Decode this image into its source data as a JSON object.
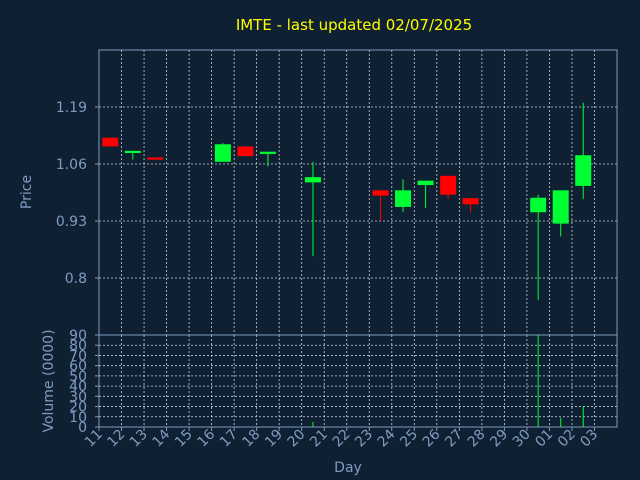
{
  "chart_data": [
    {
      "type": "candlestick",
      "title": "IMTE - last updated 02/07/2025",
      "ylabel": "Price",
      "yticks": [
        0.8,
        0.93,
        1.06,
        1.19
      ],
      "yticklabels": [
        "0.8",
        "0.93",
        "1.06",
        "1.19"
      ],
      "ylim": [
        0.67,
        1.32
      ],
      "x": [
        "11",
        "12",
        "13",
        "14",
        "15",
        "16",
        "17",
        "18",
        "19",
        "20",
        "21",
        "22",
        "23",
        "24",
        "25",
        "26",
        "27",
        "28",
        "29",
        "30",
        "01",
        "02",
        "03"
      ],
      "grid": true,
      "candles": [
        {
          "day": "11",
          "open": 1.12,
          "close": 1.1,
          "high": 1.12,
          "low": 1.1
        },
        {
          "day": "12",
          "open": 1.085,
          "close": 1.09,
          "high": 1.09,
          "low": 1.07
        },
        {
          "day": "13",
          "open": 1.075,
          "close": 1.07,
          "high": 1.075,
          "low": 1.068
        },
        {
          "day": "16",
          "open": 1.065,
          "close": 1.105,
          "high": 1.108,
          "low": 1.065
        },
        {
          "day": "17",
          "open": 1.1,
          "close": 1.078,
          "high": 1.1,
          "low": 1.078
        },
        {
          "day": "18",
          "open": 1.083,
          "close": 1.088,
          "high": 1.088,
          "low": 1.055
        },
        {
          "day": "20",
          "open": 1.018,
          "close": 1.03,
          "high": 1.065,
          "low": 0.85
        },
        {
          "day": "23",
          "open": 1.0,
          "close": 0.988,
          "high": 1.0,
          "low": 0.93
        },
        {
          "day": "24",
          "open": 0.962,
          "close": 1.0,
          "high": 1.025,
          "low": 0.95
        },
        {
          "day": "25",
          "open": 1.012,
          "close": 1.022,
          "high": 1.022,
          "low": 0.96
        },
        {
          "day": "26",
          "open": 1.033,
          "close": 0.99,
          "high": 1.033,
          "low": 0.98
        },
        {
          "day": "27",
          "open": 0.982,
          "close": 0.968,
          "high": 0.982,
          "low": 0.95
        },
        {
          "day": "30",
          "open": 0.95,
          "close": 0.983,
          "high": 0.99,
          "low": 0.75
        },
        {
          "day": "01",
          "open": 0.924,
          "close": 1.0,
          "high": 1.0,
          "low": 0.895
        },
        {
          "day": "02",
          "open": 1.01,
          "close": 1.08,
          "high": 1.2,
          "low": 0.98
        }
      ],
      "colors": {
        "up": "#00ff33",
        "down": "#ff0000",
        "background": "#0f2033",
        "title": "#ffff00",
        "text": "#7f9cbf",
        "grid": "#c8d2e0"
      }
    },
    {
      "type": "bar",
      "ylabel": "Volume (0000)",
      "xlabel": "Day",
      "yticks": [
        0,
        10,
        20,
        30,
        40,
        50,
        60,
        70,
        80,
        90
      ],
      "yticklabels": [
        "0",
        "10",
        "20",
        "30",
        "40",
        "50",
        "60",
        "70",
        "80",
        "90"
      ],
      "ylim": [
        0,
        90
      ],
      "x": [
        "11",
        "12",
        "13",
        "14",
        "15",
        "16",
        "17",
        "18",
        "19",
        "20",
        "21",
        "22",
        "23",
        "24",
        "25",
        "26",
        "27",
        "28",
        "29",
        "30",
        "01",
        "02",
        "03"
      ],
      "values": [
        0,
        0,
        0,
        0,
        0,
        0,
        0,
        0,
        0,
        5,
        0,
        0,
        0,
        0,
        0,
        0,
        0,
        0,
        0,
        90,
        9,
        20,
        0
      ],
      "colors": {
        "bar": "#00ff33"
      }
    }
  ]
}
